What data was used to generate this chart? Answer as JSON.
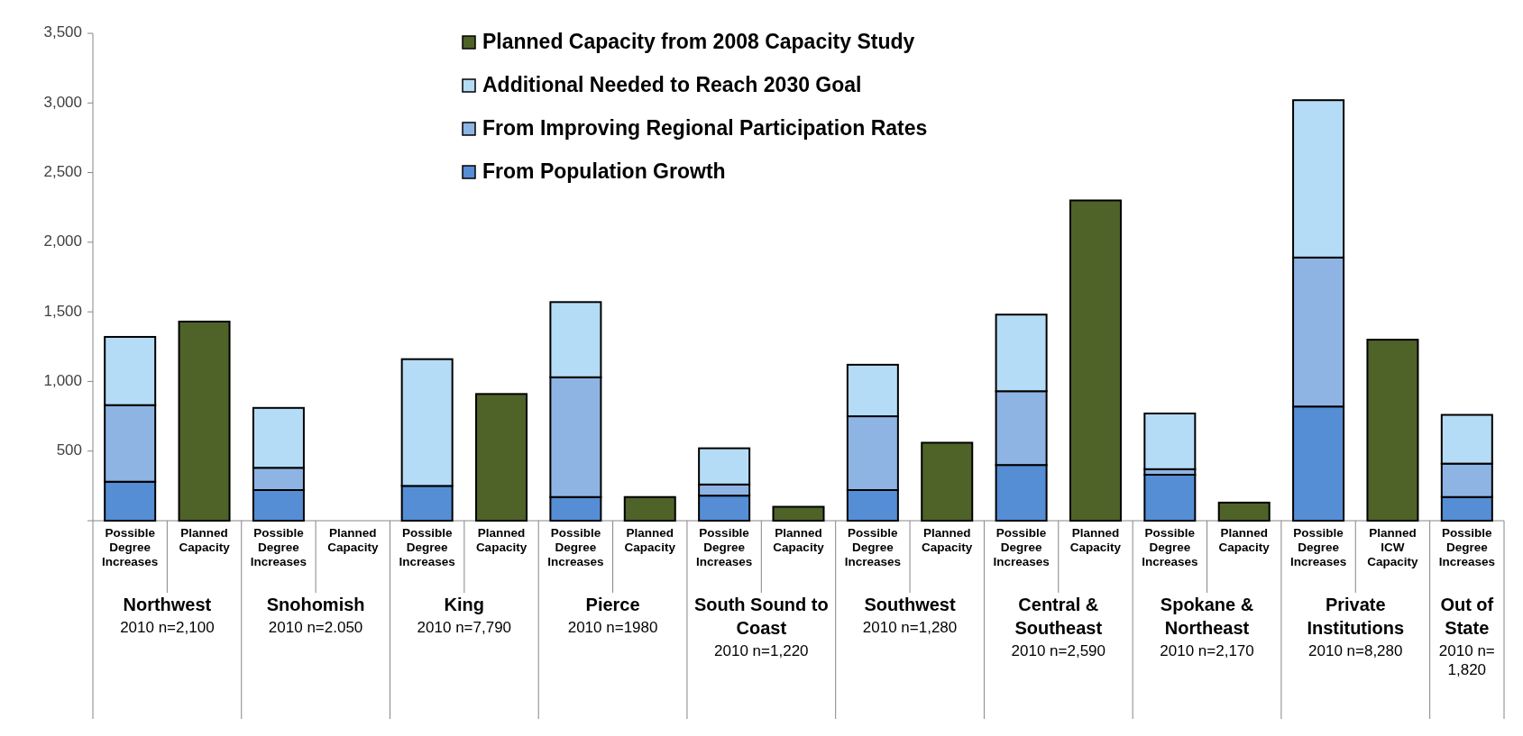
{
  "chart_data": {
    "type": "bar",
    "stacked": true,
    "categories": [
      "Possible Degree Increases",
      "Planned Capacity",
      "Possible Degree Increases",
      "Planned Capacity",
      "Possible Degree Increases",
      "Planned Capacity",
      "Possible Degree Increases",
      "Planned Capacity",
      "Possible Degree Increases",
      "Planned Capacity",
      "Possible Degree Increases",
      "Planned Capacity",
      "Possible Degree Increases",
      "Planned Capacity",
      "Possible Degree Increases",
      "Planned Capacity",
      "Possible Degree Increases",
      "Planned ICW Capacity",
      "Possible Degree Increases"
    ],
    "series": [
      {
        "name": "From  Population Growth",
        "color": "#558ed5",
        "values": [
          280,
          null,
          220,
          null,
          250,
          null,
          170,
          null,
          180,
          null,
          220,
          null,
          400,
          null,
          330,
          null,
          820,
          null,
          170
        ]
      },
      {
        "name": "From Improving Regional Participation Rates",
        "color": "#8eb4e3",
        "values": [
          550,
          null,
          160,
          null,
          0,
          null,
          860,
          null,
          80,
          null,
          530,
          null,
          530,
          null,
          40,
          null,
          1070,
          null,
          240
        ]
      },
      {
        "name": "Additional Needed to Reach 2030 Goal",
        "color": "#b5dcf6",
        "values": [
          490,
          null,
          430,
          null,
          910,
          null,
          540,
          null,
          260,
          null,
          370,
          null,
          550,
          null,
          400,
          null,
          1130,
          null,
          350
        ]
      },
      {
        "name": "Planned Capacity from 2008 Capacity Study",
        "color": "#4f6228",
        "values": [
          null,
          1430,
          null,
          null,
          null,
          910,
          null,
          170,
          null,
          100,
          null,
          560,
          null,
          2300,
          null,
          130,
          null,
          1300,
          null
        ]
      }
    ],
    "ylim": [
      0,
      3500
    ],
    "yticks": [
      {
        "value": 0,
        "label": null
      },
      {
        "value": 500,
        "label": "500"
      },
      {
        "value": 1000,
        "label": "1,000"
      },
      {
        "value": 1500,
        "label": "1,500"
      },
      {
        "value": 2000,
        "label": "2,000"
      },
      {
        "value": 2500,
        "label": "2,500"
      },
      {
        "value": 3000,
        "label": "3,000"
      },
      {
        "value": 3500,
        "label": "3,500"
      }
    ],
    "legend": "top",
    "annotations": [
      "Northwest",
      "2010 n=2,100",
      "Snohomish",
      "2010 n=2.050",
      "King",
      "2010 n=7,790",
      "Pierce",
      "2010 n=1980",
      "South Sound to Coast",
      "2010 n=1,220",
      "Southwest",
      "2010 n=1,280",
      "Central & Southeast",
      "2010 n=2,590",
      "Spokane & Northeast",
      "2010 n=2,170",
      "Private Institutions",
      "2010 n=8,280",
      "Out of State",
      "2010 n= 1,820"
    ]
  }
}
